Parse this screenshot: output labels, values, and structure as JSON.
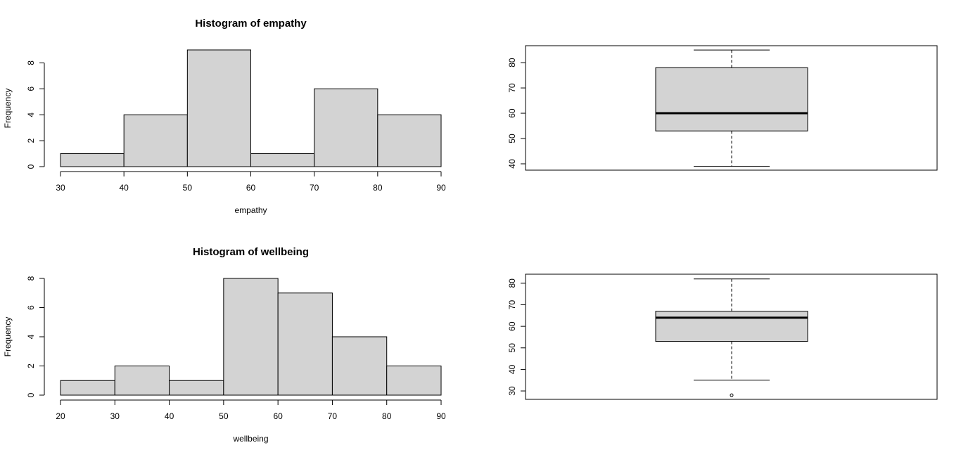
{
  "chart_data": [
    {
      "type": "histogram",
      "title": "Histogram of empathy",
      "x_label": "empathy",
      "y_label": "Frequency",
      "bins": [
        30,
        40,
        50,
        60,
        70,
        80,
        90
      ],
      "counts": [
        1,
        4,
        9,
        1,
        6,
        4
      ],
      "color": "#d3d3d3",
      "xlim": [
        30,
        90
      ],
      "xticks": [
        30,
        40,
        50,
        60,
        70,
        80,
        90
      ],
      "ylim": [
        0,
        9
      ],
      "yticks": [
        0,
        2,
        4,
        6,
        8
      ]
    },
    {
      "type": "boxplot",
      "min": 39,
      "q1": 53,
      "median": 60,
      "q3": 78,
      "max": 85,
      "outliers": [],
      "color": "#d3d3d3",
      "ylim": [
        37.5,
        86.7
      ],
      "yticks": [
        40,
        50,
        60,
        70,
        80
      ]
    },
    {
      "type": "histogram",
      "title": "Histogram of wellbeing",
      "x_label": "wellbeing",
      "y_label": "Frequency",
      "bins": [
        20,
        30,
        40,
        50,
        60,
        70,
        80,
        90
      ],
      "counts": [
        1,
        2,
        1,
        8,
        7,
        4,
        2
      ],
      "color": "#d3d3d3",
      "xlim": [
        20,
        90
      ],
      "xticks": [
        20,
        30,
        40,
        50,
        60,
        70,
        80,
        90
      ],
      "ylim": [
        0,
        8
      ],
      "yticks": [
        0,
        2,
        4,
        6,
        8
      ]
    },
    {
      "type": "boxplot",
      "min": 35,
      "q1": 53,
      "median": 64,
      "q3": 67,
      "max": 82,
      "outliers": [
        28
      ],
      "color": "#d3d3d3",
      "ylim": [
        26.1,
        84.2
      ],
      "yticks": [
        30,
        40,
        50,
        60,
        70,
        80
      ]
    }
  ]
}
